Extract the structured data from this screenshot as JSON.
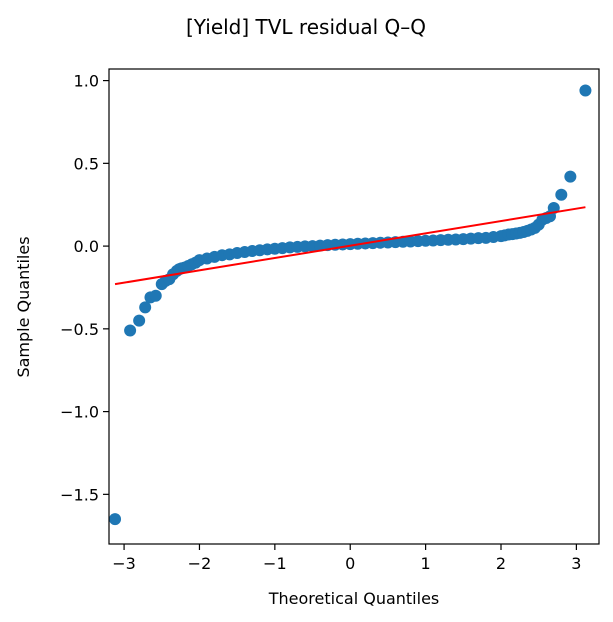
{
  "chart_data": {
    "type": "scatter",
    "title": "[Yield] TVL residual Q–Q",
    "xlabel": "Theoretical Quantiles",
    "ylabel": "Sample Quantiles",
    "xlim": [
      -3.2,
      3.3
    ],
    "ylim": [
      -1.8,
      1.07
    ],
    "xticks": [
      -3,
      -2,
      -1,
      0,
      1,
      2,
      3
    ],
    "xtick_labels": [
      "−3",
      "−2",
      "−1",
      "0",
      "1",
      "2",
      "3"
    ],
    "yticks": [
      -1.5,
      -1.0,
      -0.5,
      0.0,
      0.5,
      1.0
    ],
    "ytick_labels": [
      "−1.5",
      "−1.0",
      "−0.5",
      "0.0",
      "0.5",
      "1.0"
    ],
    "grid": false,
    "point_color": "#1f77b4",
    "line_color": "#ff0000",
    "reference_line": {
      "x": [
        -3.12,
        3.12
      ],
      "y": [
        -0.23,
        0.235
      ]
    },
    "series": [
      {
        "x": [
          -3.12,
          -2.92,
          -2.8,
          -2.72,
          -2.65,
          -2.58,
          -2.5,
          -2.45,
          -2.4,
          -2.35,
          -2.3,
          -2.27,
          -2.24,
          -2.2,
          -2.15,
          -2.1,
          -2.05,
          -2.0,
          -1.9,
          -1.8,
          -1.7,
          -1.6,
          -1.5,
          -1.4,
          -1.3,
          -1.2,
          -1.1,
          -1.0,
          -0.9,
          -0.8,
          -0.7,
          -0.6,
          -0.5,
          -0.4,
          -0.3,
          -0.2,
          -0.1,
          0.0,
          0.1,
          0.2,
          0.3,
          0.4,
          0.5,
          0.6,
          0.7,
          0.8,
          0.9,
          1.0,
          1.1,
          1.2,
          1.3,
          1.4,
          1.5,
          1.6,
          1.7,
          1.8,
          1.9,
          2.0,
          2.05,
          2.1,
          2.15,
          2.2,
          2.25,
          2.3,
          2.35,
          2.4,
          2.45,
          2.5,
          2.55,
          2.6,
          2.65,
          2.7,
          2.8,
          2.92,
          3.12
        ],
        "y": [
          -1.65,
          -0.51,
          -0.45,
          -0.37,
          -0.31,
          -0.3,
          -0.23,
          -0.21,
          -0.2,
          -0.17,
          -0.15,
          -0.14,
          -0.135,
          -0.13,
          -0.12,
          -0.11,
          -0.1,
          -0.085,
          -0.075,
          -0.065,
          -0.055,
          -0.05,
          -0.042,
          -0.036,
          -0.03,
          -0.025,
          -0.02,
          -0.016,
          -0.012,
          -0.008,
          -0.005,
          -0.002,
          0.0,
          0.003,
          0.006,
          0.008,
          0.01,
          0.012,
          0.014,
          0.016,
          0.018,
          0.02,
          0.022,
          0.024,
          0.026,
          0.028,
          0.03,
          0.032,
          0.034,
          0.036,
          0.038,
          0.04,
          0.042,
          0.045,
          0.048,
          0.05,
          0.055,
          0.06,
          0.065,
          0.07,
          0.072,
          0.076,
          0.08,
          0.085,
          0.092,
          0.1,
          0.11,
          0.13,
          0.16,
          0.17,
          0.18,
          0.23,
          0.31,
          0.42,
          0.94
        ]
      }
    ]
  }
}
